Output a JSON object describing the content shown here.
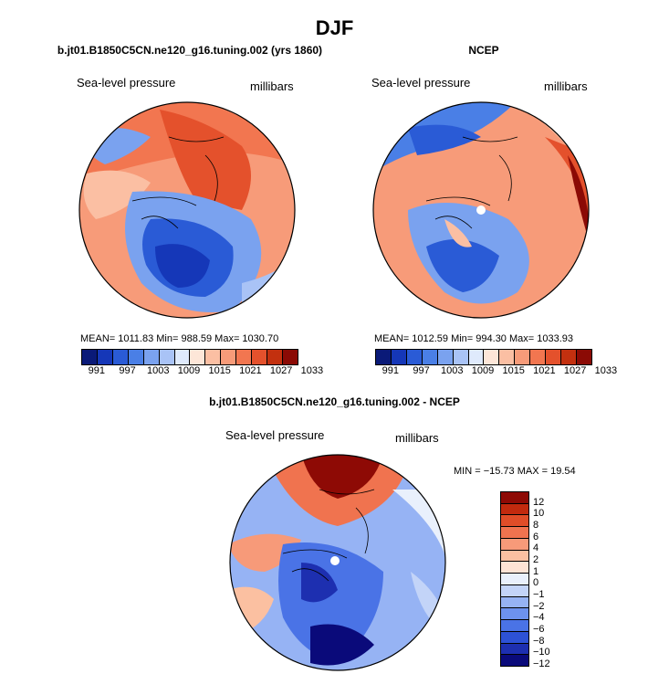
{
  "figure_title": "DJF",
  "colors": {
    "scale": [
      "#0a1a78",
      "#1537b8",
      "#2a5bd6",
      "#4a7fe6",
      "#7aa2ef",
      "#a9c3f6",
      "#dfeafc",
      "#fde6d8",
      "#fbbfa3",
      "#f79b79",
      "#f27650",
      "#e4512c",
      "#c3300f",
      "#8b0a05"
    ],
    "diff_scale": [
      "#0a0a7a",
      "#1d2fb0",
      "#2d52d6",
      "#4a73e6",
      "#6d92ee",
      "#96b3f4",
      "#c3d4f8",
      "#e9f0fc",
      "#fde3d5",
      "#fbc0a1",
      "#f79a79",
      "#f0734f",
      "#e04d28",
      "#c22a0e",
      "#8e0a05"
    ]
  },
  "chart_data": [
    {
      "type": "heatmap",
      "title": "b.jt01.B1850C5CN.ne120_g16.tuning.002 (yrs 1860)",
      "left_label": "Sea-level pressure",
      "right_label": "millibars",
      "stats": "MEAN= 1011.83   Min= 988.59   Max= 1030.70",
      "colorbar_ticks": [
        "991",
        "997",
        "1003",
        "1009",
        "1015",
        "1021",
        "1027",
        "1033"
      ]
    },
    {
      "type": "heatmap",
      "title": "NCEP",
      "left_label": "Sea-level pressure",
      "right_label": "millibars",
      "stats": "MEAN= 1012.59   Min= 994.30   Max= 1033.93",
      "colorbar_ticks": [
        "991",
        "997",
        "1003",
        "1009",
        "1015",
        "1021",
        "1027",
        "1033"
      ]
    },
    {
      "type": "heatmap",
      "title": "b.jt01.B1850C5CN.ne120_g16.tuning.002 - NCEP",
      "left_label": "Sea-level pressure",
      "right_label": "millibars",
      "stats": "MIN = −15.73  MAX =  19.54",
      "colorbar_ticks": [
        "12",
        "10",
        "8",
        "6",
        "4",
        "2",
        "1",
        "0",
        "−1",
        "−2",
        "−4",
        "−6",
        "−8",
        "−10",
        "−12"
      ]
    }
  ]
}
